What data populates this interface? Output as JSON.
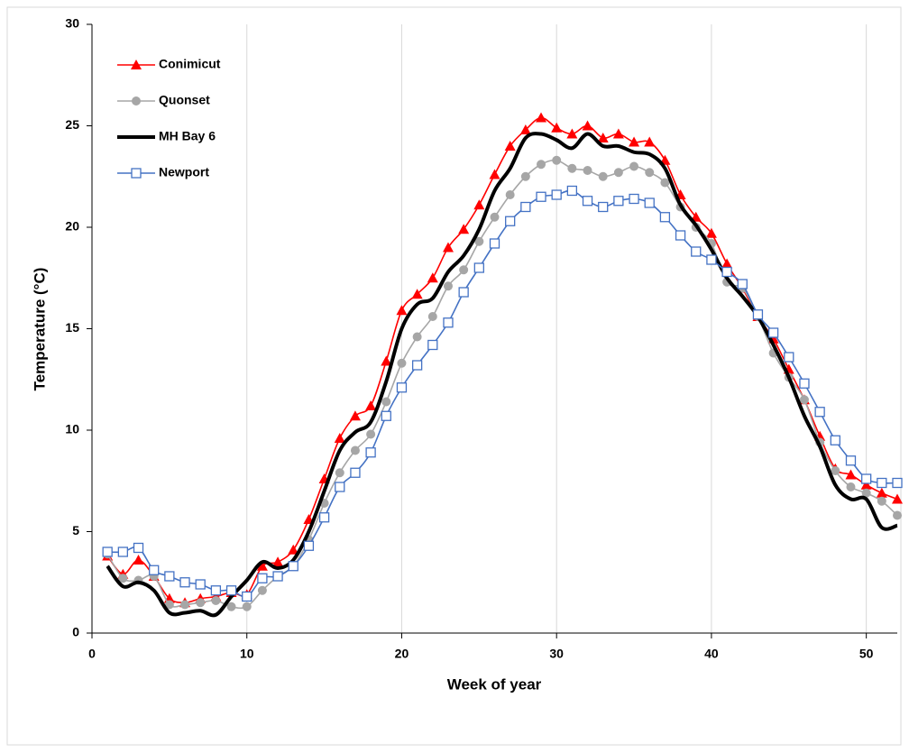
{
  "chart_data": {
    "type": "line",
    "x_label": "Week of year",
    "y_label": "Temperature (°C)",
    "x": [
      1,
      2,
      3,
      4,
      5,
      6,
      7,
      8,
      9,
      10,
      11,
      12,
      13,
      14,
      15,
      16,
      17,
      18,
      19,
      20,
      21,
      22,
      23,
      24,
      25,
      26,
      27,
      28,
      29,
      30,
      31,
      32,
      33,
      34,
      35,
      36,
      37,
      38,
      39,
      40,
      41,
      42,
      43,
      44,
      45,
      46,
      47,
      48,
      49,
      50,
      51,
      52
    ],
    "series": [
      {
        "name": "Conimicut",
        "color": "#ff0000",
        "marker": "triangle",
        "values": [
          3.8,
          2.9,
          3.6,
          2.8,
          1.7,
          1.5,
          1.7,
          1.8,
          2.0,
          1.9,
          3.3,
          3.5,
          4.1,
          5.6,
          7.6,
          9.6,
          10.7,
          11.2,
          13.4,
          15.9,
          16.7,
          17.5,
          19.0,
          19.9,
          21.1,
          22.6,
          24.0,
          24.8,
          25.4,
          24.9,
          24.6,
          25.0,
          24.4,
          24.6,
          24.2,
          24.2,
          23.3,
          21.6,
          20.5,
          19.7,
          18.2,
          17.0,
          15.6,
          14.5,
          13.0,
          11.5,
          9.7,
          8.1,
          7.8,
          7.3,
          6.9,
          6.6
        ]
      },
      {
        "name": "Quonset",
        "color": "#a6a6a6",
        "marker": "circle",
        "values": [
          3.9,
          2.7,
          2.6,
          2.8,
          1.4,
          1.4,
          1.5,
          1.6,
          1.3,
          1.3,
          2.1,
          2.8,
          3.3,
          4.6,
          6.4,
          7.9,
          9.0,
          9.8,
          11.4,
          13.3,
          14.6,
          15.6,
          17.1,
          17.9,
          19.3,
          20.5,
          21.6,
          22.5,
          23.1,
          23.3,
          22.9,
          22.8,
          22.5,
          22.7,
          23.0,
          22.7,
          22.2,
          21.0,
          20.0,
          19.2,
          17.3,
          17.0,
          15.6,
          13.8,
          12.6,
          11.5,
          9.4,
          8.0,
          7.2,
          6.9,
          6.5,
          5.8
        ]
      },
      {
        "name": "MH Bay 6",
        "color": "#000000",
        "marker": "none",
        "values": [
          3.3,
          2.3,
          2.5,
          2.1,
          1.0,
          1.0,
          1.1,
          0.9,
          1.8,
          2.6,
          3.5,
          3.2,
          3.6,
          5.0,
          7.0,
          9.0,
          9.9,
          10.4,
          12.4,
          15.0,
          16.2,
          16.5,
          17.8,
          18.6,
          19.9,
          21.8,
          22.9,
          24.4,
          24.6,
          24.3,
          23.9,
          24.6,
          24.0,
          24.0,
          23.7,
          23.6,
          22.9,
          21.1,
          20.1,
          18.9,
          17.5,
          16.6,
          15.6,
          14.2,
          12.6,
          10.7,
          9.2,
          7.3,
          6.6,
          6.6,
          5.2,
          5.3
        ]
      },
      {
        "name": "Newport",
        "color": "#4472c4",
        "marker": "square-open",
        "values": [
          4.0,
          4.0,
          4.2,
          3.1,
          2.8,
          2.5,
          2.4,
          2.1,
          2.1,
          1.8,
          2.7,
          2.8,
          3.3,
          4.3,
          5.7,
          7.2,
          7.9,
          8.9,
          10.7,
          12.1,
          13.2,
          14.2,
          15.3,
          16.8,
          18.0,
          19.2,
          20.3,
          21.0,
          21.5,
          21.6,
          21.8,
          21.3,
          21.0,
          21.3,
          21.4,
          21.2,
          20.5,
          19.6,
          18.8,
          18.4,
          17.8,
          17.2,
          15.7,
          14.8,
          13.6,
          12.3,
          10.9,
          9.5,
          8.5,
          7.6,
          7.4,
          7.4
        ]
      }
    ],
    "xlim": [
      0,
      52
    ],
    "xticks": [
      0,
      10,
      20,
      30,
      40,
      50
    ],
    "ylim": [
      0,
      30
    ],
    "yticks": [
      0,
      5,
      10,
      15,
      20,
      25,
      30
    ],
    "grid": "x",
    "smooth": true,
    "legend": "upper left"
  }
}
